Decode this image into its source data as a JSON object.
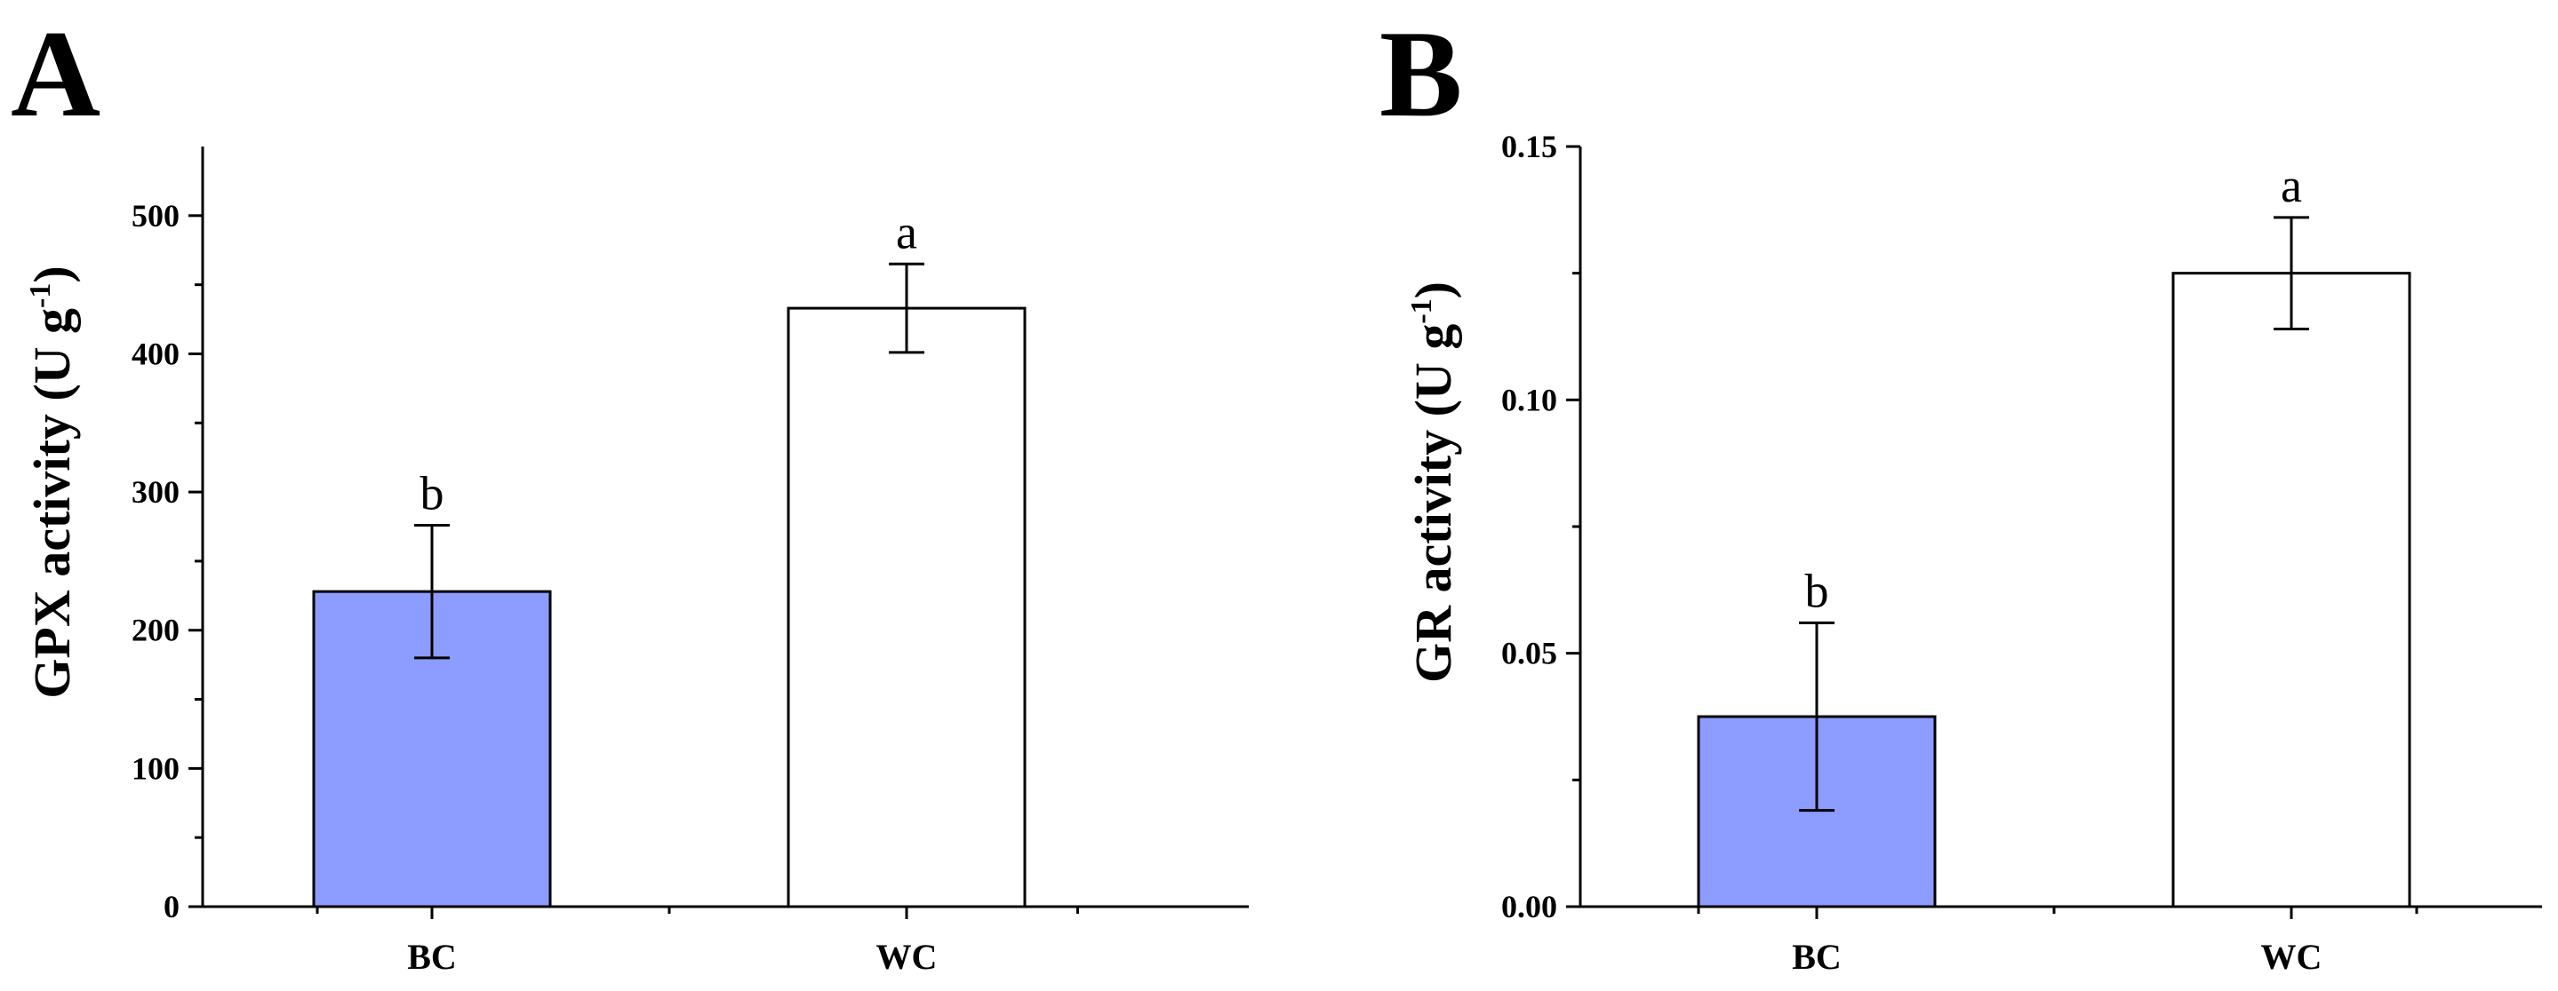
{
  "chart_data": [
    {
      "type": "bar",
      "panel_label": "A",
      "categories": [
        "BC",
        "WC"
      ],
      "values": [
        228,
        433
      ],
      "errors": [
        48,
        32
      ],
      "significance": [
        "b",
        "a"
      ],
      "colors": [
        "#8c9cff",
        "#ffffff"
      ],
      "ylabel": {
        "prefix": "GPX activity (U g",
        "sup": "-1",
        "suffix": ")"
      },
      "xlabel": "",
      "ylim": [
        0,
        550
      ],
      "yticks": [
        0,
        100,
        200,
        300,
        400,
        500
      ],
      "ytick_labels": [
        "0",
        "100",
        "200",
        "300",
        "400",
        "500"
      ]
    },
    {
      "type": "bar",
      "panel_label": "B",
      "categories": [
        "BC",
        "WC"
      ],
      "values": [
        0.0375,
        0.125
      ],
      "errors": [
        0.0185,
        0.011
      ],
      "significance": [
        "b",
        "a"
      ],
      "colors": [
        "#8c9cff",
        "#ffffff"
      ],
      "ylabel": {
        "prefix": "GR activity (U g",
        "sup": "-1",
        "suffix": ")"
      },
      "xlabel": "",
      "ylim": [
        0,
        0.15
      ],
      "yticks": [
        0,
        0.05,
        0.1,
        0.15
      ],
      "ytick_labels": [
        "0.00",
        "0.05",
        "0.10",
        "0.15"
      ]
    }
  ]
}
